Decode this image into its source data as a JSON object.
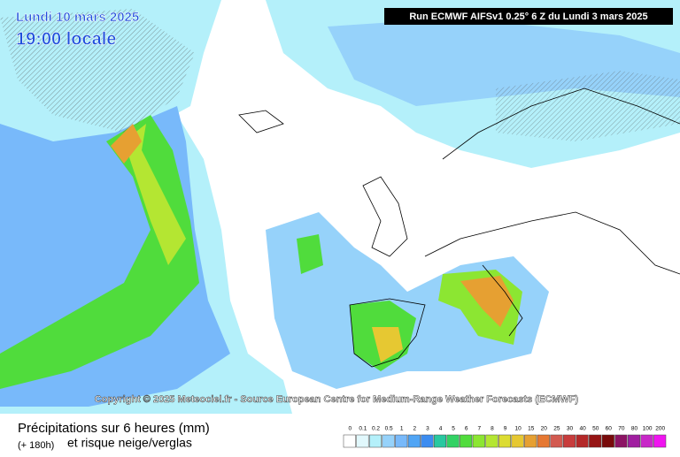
{
  "header": {
    "date": "Lundi 10 mars 2025",
    "time": "19:00 locale",
    "run": "Run ECMWF AIFSv1 0.25° 6 Z du Lundi 3 mars 2025"
  },
  "copyright": "Copyright © 2025 Meteociel.fr - Source European Centre for Medium-Range Weather Forecasts (ECMWF)",
  "footer": {
    "title": "Précipitations sur 6 heures (mm)",
    "lead": "(+ 180h)",
    "subtitle": "et risque neige/verglas"
  },
  "legend": {
    "labels": [
      0,
      0.1,
      0.2,
      0.5,
      1,
      2,
      3,
      4,
      5,
      6,
      7,
      8,
      9,
      10,
      15,
      20,
      25,
      30,
      40,
      50,
      60,
      70,
      80,
      100,
      200
    ],
    "colors": [
      "#ffffff",
      "#e1f8fc",
      "#b4f0fa",
      "#96d2fa",
      "#78b9fa",
      "#50a5f5",
      "#3c8cf0",
      "#28c8a0",
      "#32d264",
      "#50dc3c",
      "#8ce632",
      "#b4e632",
      "#dcdc32",
      "#e6c832",
      "#e6a032",
      "#e67832",
      "#d25a50",
      "#c83c3c",
      "#b42828",
      "#961414",
      "#780a0a",
      "#8c1464",
      "#a01ea0",
      "#c828c8",
      "#f014f0"
    ]
  }
}
